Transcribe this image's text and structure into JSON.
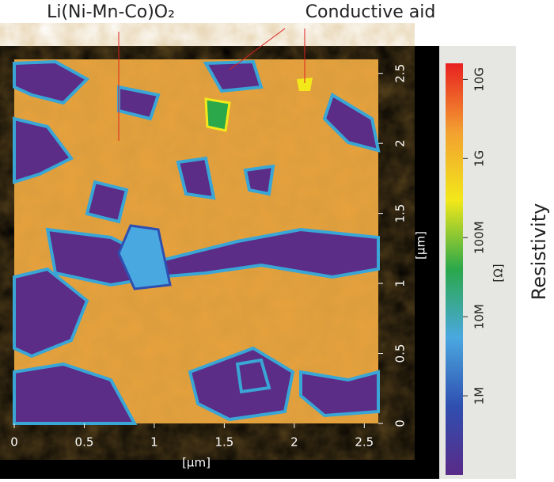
{
  "chart_data": {
    "type": "heatmap",
    "annotations": [
      "Li(Ni-Mn-Co)O₂",
      "Conductive aid"
    ],
    "xlabel": "[µm]",
    "ylabel": "[µm]",
    "xlim": [
      0,
      2.6
    ],
    "ylim": [
      0,
      2.6
    ],
    "xticks": [
      0,
      0.5,
      1,
      1.5,
      2,
      2.5
    ],
    "yticks": [
      0,
      0.5,
      1,
      1.5,
      2,
      2.5
    ],
    "colorbar": {
      "title": "Resistivity",
      "label": "[Ω]",
      "log_scale": true,
      "lim": [
        100000,
        16000000000
      ],
      "colors": [
        "#5a2a88",
        "#2f4fb0",
        "#4aa8e0",
        "#2aa84a",
        "#f2e81a",
        "#f3a030",
        "#e82020"
      ],
      "ticks": [
        {
          "value": 1000000,
          "label": "1M"
        },
        {
          "value": 10000000,
          "label": "10M"
        },
        {
          "value": 100000000,
          "label": "100M"
        },
        {
          "value": 1000000000,
          "label": "1G"
        },
        {
          "value": 10000000000,
          "label": "10G"
        }
      ]
    }
  }
}
